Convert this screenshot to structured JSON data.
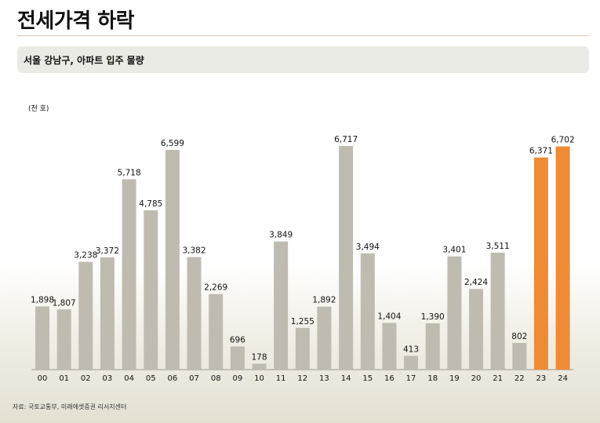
{
  "header": {
    "title": "전세가격 하락"
  },
  "subtitle": "서울 강남구, 아파트 입주 물량",
  "source": "자료: 국토교통부, 미래에셋증권 리서치센터",
  "chart_data": {
    "type": "bar",
    "ylabel": "(천 호)",
    "ylim": [
      0,
      7000
    ],
    "categories": [
      "00",
      "01",
      "02",
      "03",
      "04",
      "05",
      "06",
      "07",
      "08",
      "09",
      "10",
      "11",
      "12",
      "13",
      "14",
      "15",
      "16",
      "17",
      "18",
      "19",
      "20",
      "21",
      "22",
      "23",
      "24"
    ],
    "series": [
      {
        "values": [
          1898,
          1807,
          3238,
          3372,
          5718,
          4785,
          6599,
          3382,
          2269,
          696,
          178,
          3849,
          1255,
          1892,
          6717,
          3494,
          1404,
          413,
          1390,
          3401,
          2424,
          3511,
          802,
          6371,
          6702
        ],
        "labels": [
          "1,898",
          "1,807",
          "3,238",
          "3,372",
          "5,718",
          "4,785",
          "6,599",
          "3,382",
          "2,269",
          "696",
          "178",
          "3,849",
          "1,255",
          "1,892",
          "6,717",
          "3,494",
          "1,404",
          "413",
          "1,390",
          "3,401",
          "2,424",
          "3,511",
          "802",
          "6,371",
          "6,702"
        ]
      }
    ],
    "highlight_categories": [
      "23",
      "24"
    ],
    "colors": {
      "bar": "#bfbbb1",
      "highlight": "#ef8a35",
      "axis": "#9a968c"
    },
    "legend": "none",
    "grid": false
  }
}
